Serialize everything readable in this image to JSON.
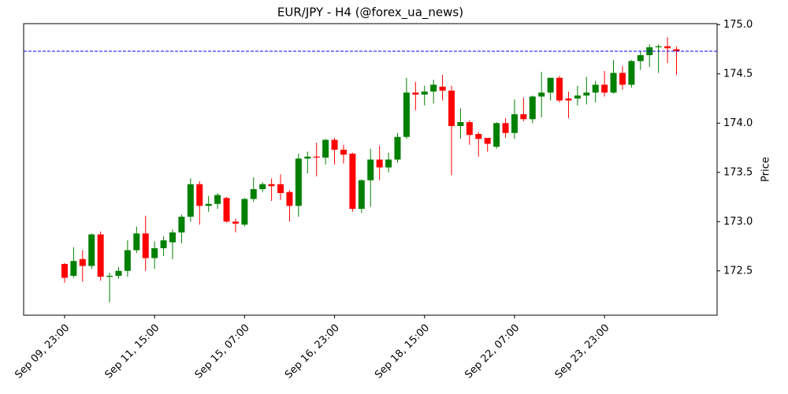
{
  "chart_data": {
    "type": "candlestick",
    "title": "EUR/JPY - H4 (@forex_ua_news)",
    "y_label": "Price",
    "categories": [
      "Sep 09, 23:00",
      null,
      null,
      null,
      null,
      null,
      null,
      null,
      null,
      null,
      "Sep 11, 15:00",
      null,
      null,
      null,
      null,
      null,
      null,
      null,
      null,
      null,
      "Sep 15, 07:00",
      null,
      null,
      null,
      null,
      null,
      null,
      null,
      null,
      null,
      "Sep 16, 23:00",
      null,
      null,
      null,
      null,
      null,
      null,
      null,
      null,
      null,
      "Sep 18, 15:00",
      null,
      null,
      null,
      null,
      null,
      null,
      null,
      null,
      null,
      "Sep 22, 07:00",
      null,
      null,
      null,
      null,
      null,
      null,
      null,
      null,
      null,
      "Sep 23, 23:00",
      null,
      null,
      null,
      null,
      null,
      null,
      null,
      null
    ],
    "open": [
      172.57,
      172.45,
      172.62,
      172.55,
      172.87,
      172.44,
      172.45,
      172.5,
      172.71,
      172.88,
      172.63,
      172.73,
      172.79,
      172.89,
      173.05,
      173.38,
      173.16,
      173.18,
      173.24,
      173.0,
      172.97,
      173.23,
      173.33,
      173.38,
      173.38,
      173.3,
      173.16,
      173.64,
      173.66,
      173.65,
      173.83,
      173.73,
      173.69,
      173.13,
      173.42,
      173.63,
      173.55,
      173.63,
      173.86,
      174.31,
      174.29,
      174.32,
      174.37,
      174.33,
      173.97,
      174.01,
      173.89,
      173.85,
      173.76,
      174.0,
      173.9,
      174.09,
      174.04,
      174.27,
      174.31,
      174.46,
      174.25,
      174.25,
      174.28,
      174.31,
      174.39,
      174.31,
      174.51,
      174.39,
      174.63,
      174.69,
      174.77,
      174.78,
      174.75
    ],
    "high": [
      172.58,
      172.74,
      172.71,
      172.88,
      172.9,
      172.48,
      172.54,
      172.81,
      172.95,
      173.06,
      172.8,
      172.85,
      172.92,
      173.07,
      173.44,
      173.41,
      173.26,
      173.29,
      173.25,
      173.03,
      173.24,
      173.45,
      173.4,
      173.44,
      173.48,
      173.32,
      173.69,
      173.71,
      173.8,
      173.84,
      173.85,
      173.78,
      173.7,
      173.43,
      173.74,
      173.77,
      173.7,
      173.9,
      174.46,
      174.42,
      174.38,
      174.44,
      174.49,
      174.38,
      174.15,
      174.03,
      173.91,
      173.85,
      174.01,
      174.05,
      174.24,
      174.26,
      174.28,
      174.52,
      174.46,
      174.48,
      174.32,
      174.38,
      174.47,
      174.43,
      174.53,
      174.64,
      174.58,
      174.64,
      174.73,
      174.8,
      174.8,
      174.87,
      174.78
    ],
    "low": [
      172.38,
      172.43,
      172.39,
      172.52,
      172.4,
      172.18,
      172.42,
      172.44,
      172.68,
      172.5,
      172.52,
      172.65,
      172.62,
      172.78,
      173.0,
      172.97,
      173.1,
      173.13,
      172.99,
      172.89,
      172.95,
      173.2,
      173.3,
      173.21,
      173.22,
      173.0,
      173.05,
      173.49,
      173.46,
      173.58,
      173.58,
      173.59,
      173.1,
      173.09,
      173.15,
      173.42,
      173.5,
      173.6,
      173.84,
      174.13,
      174.18,
      174.2,
      174.23,
      173.47,
      173.84,
      173.78,
      173.66,
      173.71,
      173.74,
      173.85,
      173.84,
      174.02,
      174.0,
      174.06,
      174.23,
      174.21,
      174.05,
      174.18,
      174.19,
      174.21,
      174.27,
      174.3,
      174.34,
      174.36,
      174.54,
      174.57,
      174.51,
      174.61,
      174.49
    ],
    "close": [
      172.43,
      172.6,
      172.55,
      172.87,
      172.44,
      172.45,
      172.5,
      172.71,
      172.88,
      172.63,
      172.73,
      172.81,
      172.89,
      173.05,
      173.38,
      173.16,
      173.18,
      173.27,
      173.0,
      172.98,
      173.23,
      173.33,
      173.38,
      173.36,
      173.29,
      173.16,
      173.64,
      173.66,
      173.65,
      173.83,
      173.73,
      173.68,
      173.13,
      173.42,
      173.63,
      173.55,
      173.63,
      173.86,
      174.31,
      174.29,
      174.32,
      174.39,
      174.33,
      173.97,
      174.01,
      173.88,
      173.84,
      173.79,
      174.0,
      173.9,
      174.09,
      174.04,
      174.27,
      174.31,
      174.46,
      174.23,
      174.23,
      174.28,
      174.31,
      174.39,
      174.31,
      174.51,
      174.39,
      174.63,
      174.69,
      174.77,
      174.78,
      174.76,
      174.73
    ],
    "up_color": "#008000",
    "down_color": "#ff0000",
    "hline": 174.73,
    "hline_color": "#0000ff",
    "ylim": [
      172.05,
      175.01
    ],
    "yticks": [
      {
        "value": 172.5,
        "label": "172.5"
      },
      {
        "value": 173,
        "label": "173.0"
      },
      {
        "value": 173.5,
        "label": "173.5"
      },
      {
        "value": 174,
        "label": "174.0"
      },
      {
        "value": 174.5,
        "label": "174.5"
      },
      {
        "value": 175,
        "label": "175.0"
      }
    ]
  }
}
